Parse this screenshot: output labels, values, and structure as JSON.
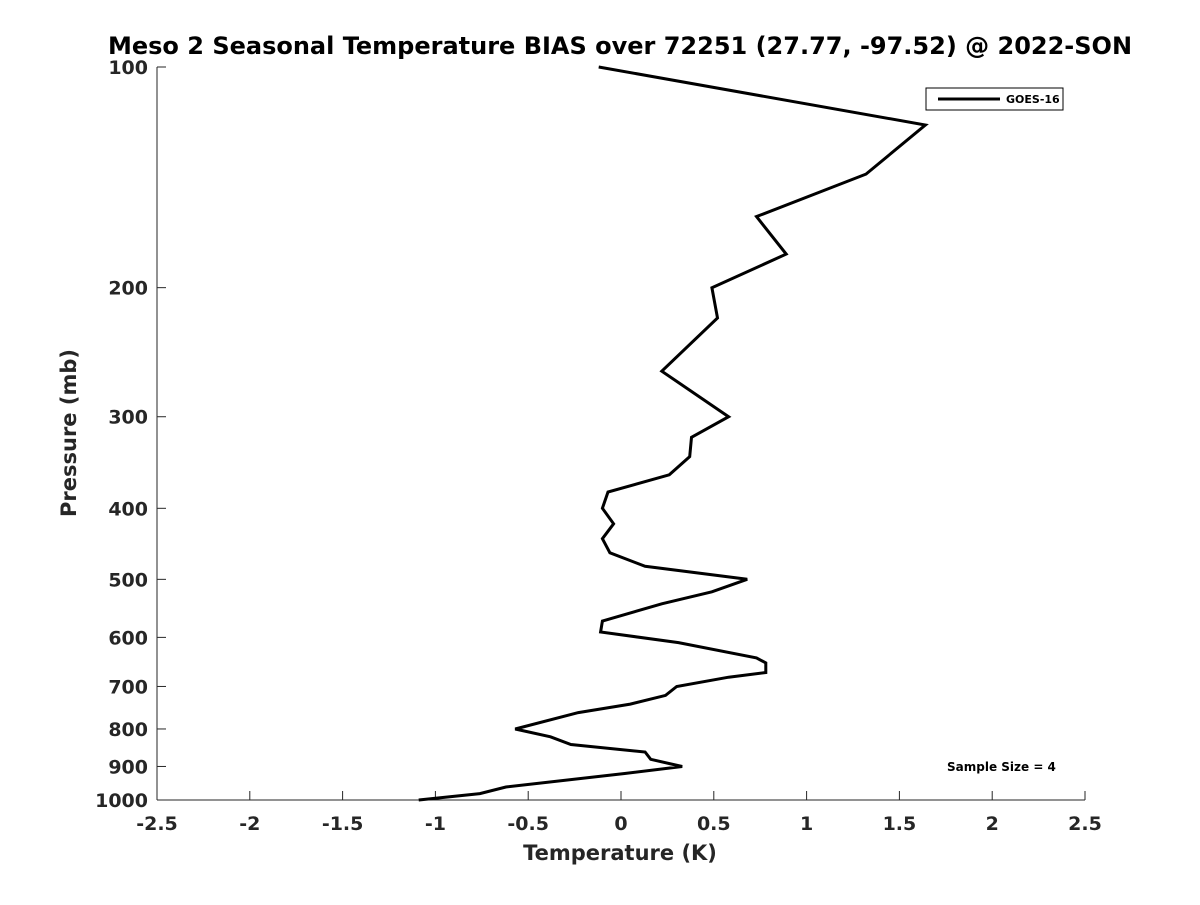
{
  "chart_data": {
    "type": "line",
    "title": "Meso 2 Seasonal Temperature BIAS over 72251 (27.77, -97.52) @ 2022-SON",
    "xlabel": "Temperature (K)",
    "ylabel": "Pressure (mb)",
    "xlim": [
      -2.5,
      2.5
    ],
    "ylim": [
      100,
      1000
    ],
    "yscale": "log",
    "y_reversed": true,
    "xticks": [
      -2.5,
      -2,
      -1.5,
      -1,
      -0.5,
      0,
      0.5,
      1,
      1.5,
      2,
      2.5
    ],
    "xtick_labels": [
      "-2.5",
      "-2",
      "-1.5",
      "-1",
      "-0.5",
      "0",
      "0.5",
      "1",
      "1.5",
      "2",
      "2.5"
    ],
    "yticks": [
      100,
      200,
      300,
      400,
      500,
      600,
      700,
      800,
      900,
      1000
    ],
    "ytick_labels": [
      "100",
      "200",
      "300",
      "400",
      "500",
      "600",
      "700",
      "800",
      "900",
      "1000"
    ],
    "grid": false,
    "legend": {
      "position": "top-right",
      "entries": [
        "GOES-16"
      ]
    },
    "annotation": "Sample Size = 4",
    "series": [
      {
        "name": "GOES-16",
        "color": "#000000",
        "points": [
          {
            "x": -0.12,
            "p": 100
          },
          {
            "x": 1.64,
            "p": 120
          },
          {
            "x": 1.32,
            "p": 140
          },
          {
            "x": 0.73,
            "p": 160
          },
          {
            "x": 0.89,
            "p": 180
          },
          {
            "x": 0.49,
            "p": 200
          },
          {
            "x": 0.52,
            "p": 220
          },
          {
            "x": 0.22,
            "p": 260
          },
          {
            "x": 0.58,
            "p": 300
          },
          {
            "x": 0.38,
            "p": 320
          },
          {
            "x": 0.37,
            "p": 340
          },
          {
            "x": 0.26,
            "p": 360
          },
          {
            "x": -0.07,
            "p": 380
          },
          {
            "x": -0.1,
            "p": 400
          },
          {
            "x": -0.04,
            "p": 420
          },
          {
            "x": -0.1,
            "p": 440
          },
          {
            "x": -0.06,
            "p": 460
          },
          {
            "x": 0.13,
            "p": 480
          },
          {
            "x": 0.68,
            "p": 500
          },
          {
            "x": 0.49,
            "p": 520
          },
          {
            "x": 0.22,
            "p": 540
          },
          {
            "x": -0.1,
            "p": 570
          },
          {
            "x": -0.11,
            "p": 590
          },
          {
            "x": 0.31,
            "p": 610
          },
          {
            "x": 0.73,
            "p": 640
          },
          {
            "x": 0.78,
            "p": 650
          },
          {
            "x": 0.78,
            "p": 670
          },
          {
            "x": 0.58,
            "p": 680
          },
          {
            "x": 0.3,
            "p": 700
          },
          {
            "x": 0.24,
            "p": 720
          },
          {
            "x": 0.05,
            "p": 740
          },
          {
            "x": -0.23,
            "p": 760
          },
          {
            "x": -0.57,
            "p": 800
          },
          {
            "x": -0.38,
            "p": 820
          },
          {
            "x": -0.27,
            "p": 840
          },
          {
            "x": 0.13,
            "p": 860
          },
          {
            "x": 0.16,
            "p": 880
          },
          {
            "x": 0.33,
            "p": 900
          },
          {
            "x": 0.02,
            "p": 920
          },
          {
            "x": -0.62,
            "p": 960
          },
          {
            "x": -0.76,
            "p": 980
          },
          {
            "x": -1.09,
            "p": 1000
          }
        ]
      }
    ]
  }
}
